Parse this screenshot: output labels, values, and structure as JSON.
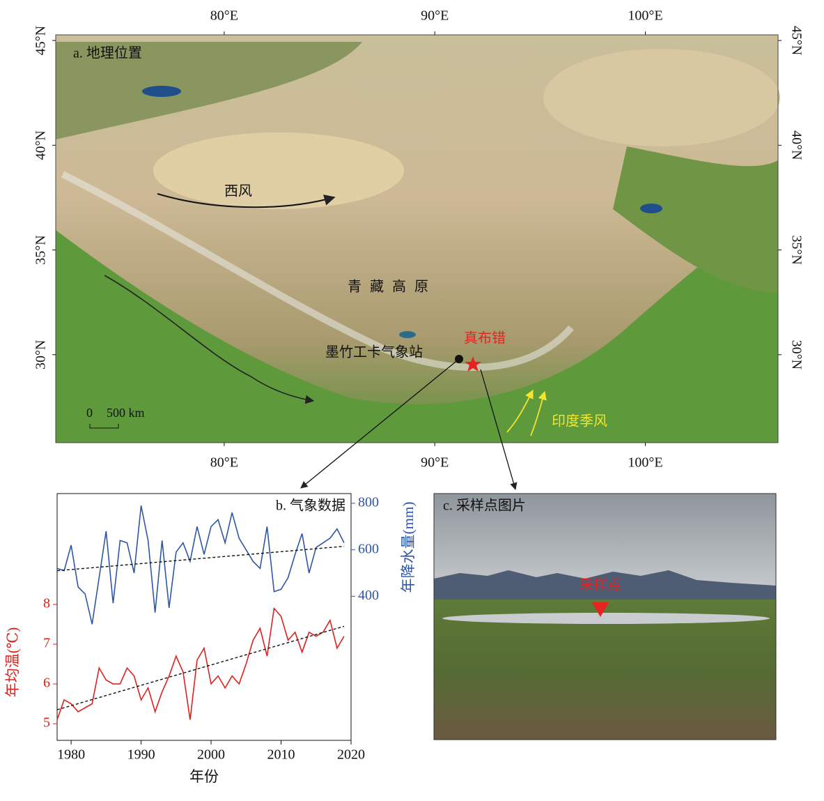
{
  "map": {
    "title": "a. 地理位置",
    "lonlim": [
      72.0,
      106.3
    ],
    "latlim": [
      25.8,
      45.27
    ],
    "lon_ticks": [
      {
        "value": 80,
        "label": "80°E"
      },
      {
        "value": 90,
        "label": "90°E"
      },
      {
        "value": 100,
        "label": "100°E"
      }
    ],
    "lat_ticks": [
      {
        "value": 45,
        "label": "45°N"
      },
      {
        "value": 40,
        "label": "40°N"
      },
      {
        "value": 35,
        "label": "35°N"
      },
      {
        "value": 30,
        "label": "30°N"
      }
    ],
    "westerlies": "西风",
    "plateau": "青藏高原",
    "station": "墨竹工卡气象站",
    "lake": "真布错",
    "monsoon": "印度季风",
    "scale_zero": "0",
    "scale_label": "500 km"
  },
  "chart_data": {
    "type": "line",
    "title": "b. 气象数据",
    "x_label": "年份",
    "y_label": "年均温(℃)",
    "y2_label": "年降水量(mm)",
    "x": [
      1978,
      1979,
      1980,
      1981,
      1982,
      1983,
      1984,
      1985,
      1986,
      1987,
      1988,
      1989,
      1990,
      1991,
      1992,
      1993,
      1994,
      1995,
      1996,
      1997,
      1998,
      1999,
      2000,
      2001,
      2002,
      2003,
      2004,
      2005,
      2006,
      2007,
      2008,
      2009,
      2010,
      2011,
      2012,
      2013,
      2014,
      2015,
      2016,
      2017,
      2018,
      2019
    ],
    "xlim": [
      1978,
      2020
    ],
    "xticks": [
      1980,
      1990,
      2000,
      2010,
      2020
    ],
    "ylim": [
      4.58,
      10.79
    ],
    "yticks": [
      5,
      6,
      7,
      8
    ],
    "y2lim": [
      -220,
      842
    ],
    "y2ticks": [
      400,
      600,
      800
    ],
    "series": [
      {
        "name": "年均温",
        "color": "#e0201b",
        "axis": "y",
        "values": [
          5.1,
          5.6,
          5.5,
          5.3,
          5.4,
          5.5,
          6.4,
          6.1,
          6.0,
          6.0,
          6.4,
          6.2,
          5.6,
          5.9,
          5.3,
          5.8,
          6.2,
          6.7,
          6.3,
          5.1,
          6.6,
          6.9,
          6.0,
          6.2,
          5.9,
          6.2,
          6.0,
          6.5,
          7.1,
          7.4,
          6.7,
          7.9,
          7.7,
          7.1,
          7.3,
          6.8,
          7.3,
          7.2,
          7.3,
          7.6,
          6.9,
          7.2
        ],
        "trend": {
          "x": [
            1978,
            2019
          ],
          "values": [
            5.35,
            7.45
          ]
        }
      },
      {
        "name": "年降水量",
        "color": "#2e56a6",
        "axis": "y2",
        "values": [
          520,
          510,
          620,
          440,
          410,
          280,
          480,
          680,
          370,
          640,
          630,
          500,
          790,
          640,
          330,
          640,
          350,
          590,
          630,
          550,
          700,
          580,
          700,
          730,
          630,
          760,
          650,
          600,
          550,
          520,
          700,
          420,
          430,
          480,
          580,
          670,
          500,
          610,
          630,
          650,
          690,
          630
        ],
        "trend": {
          "x": [
            1978,
            2019
          ],
          "values": [
            510,
            615
          ]
        }
      }
    ]
  },
  "photo": {
    "title": "c. 采样点图片",
    "site": "采样点"
  }
}
